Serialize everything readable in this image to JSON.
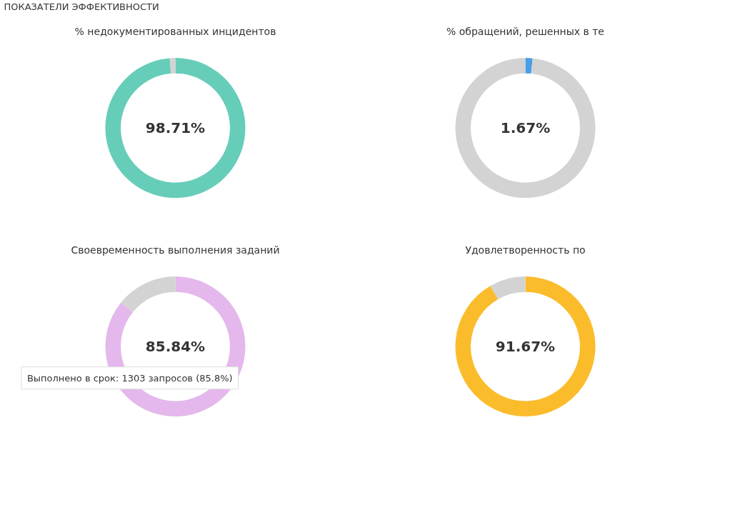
{
  "chart_data": [
    {
      "type": "donut",
      "title": "% недокументированных инцидентов",
      "subtitle": "98.71%",
      "annotations": [
        "ПОКАЗАТЕЛИ ЭФФЕКТИВНОСТИ"
      ],
      "categories": [
        null,
        null
      ],
      "values": [
        98.71,
        1.29
      ],
      "colors": [
        "#66cdb9",
        "#d3d3d3"
      ]
    },
    {
      "type": "donut",
      "title": "% обращений, решенных в те",
      "subtitle": "1.67%",
      "categories": [
        null,
        null
      ],
      "values": [
        1.67,
        98.33
      ],
      "colors": [
        "#4a9ee8",
        "#d3d3d3"
      ]
    },
    {
      "type": "donut",
      "title": "Своевременность выполнения заданий",
      "subtitle": "85.84%",
      "annotations": [
        "Выполнено в срок: 1303 запросов (85.8%)"
      ],
      "categories": [
        null,
        null
      ],
      "values": [
        85.84,
        14.16
      ],
      "colors": [
        "#e4b8ec",
        "#d3d3d3"
      ]
    },
    {
      "type": "donut",
      "title": "Удовлетворенность по",
      "subtitle": "91.67%",
      "categories": [
        null,
        null
      ],
      "values": [
        91.67,
        8.33
      ],
      "colors": [
        "#fbbc2c",
        "#d3d3d3"
      ]
    }
  ]
}
